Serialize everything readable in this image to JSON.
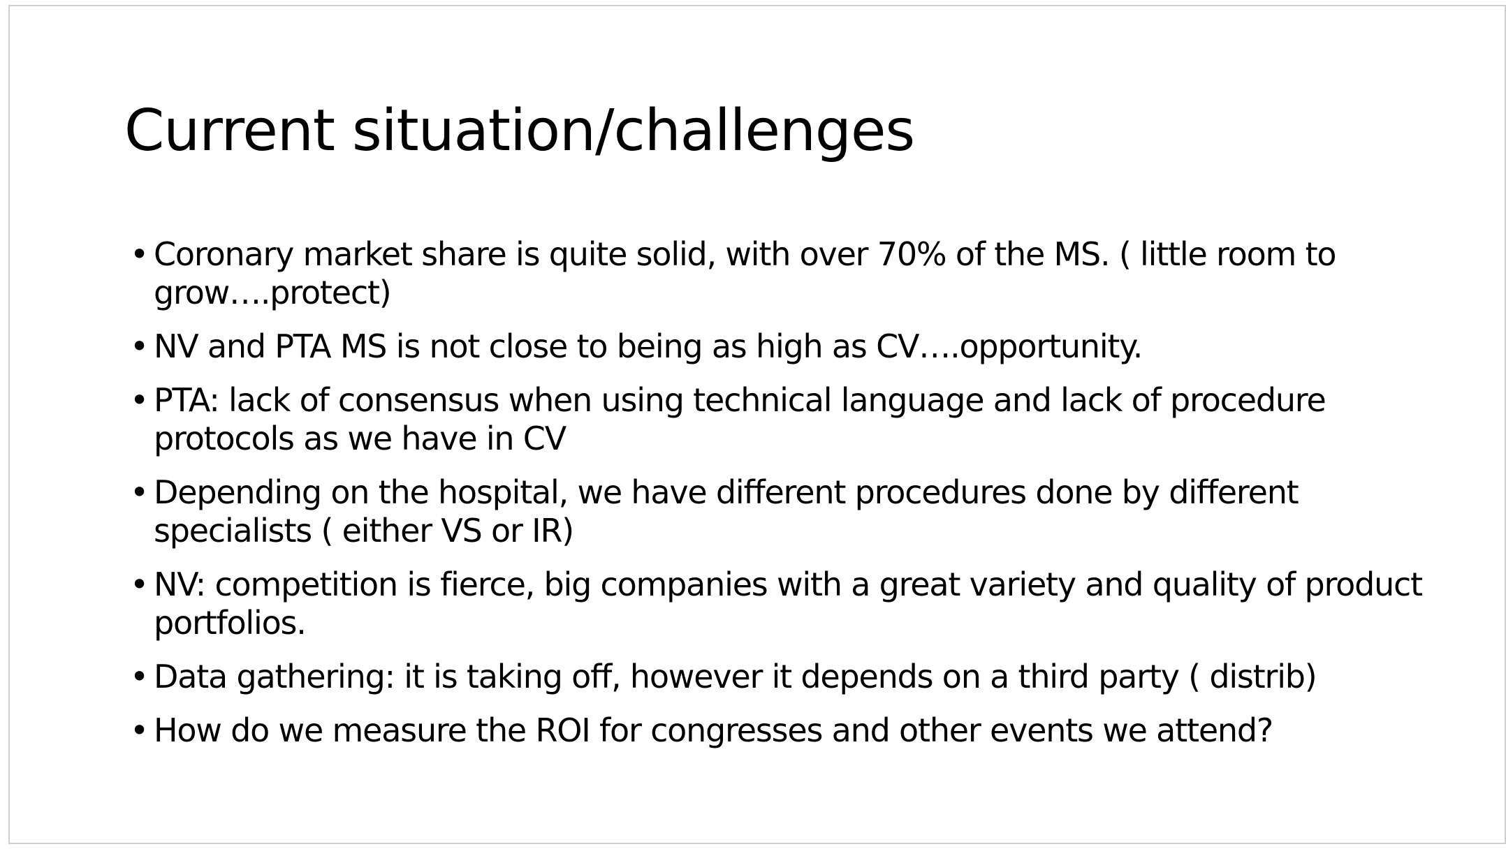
{
  "slide": {
    "title": "Current situation/challenges",
    "bullet_symbol": "•",
    "bullets": [
      "Coronary market share is quite solid, with over 70% of the MS. ( little room to grow….protect)",
      "NV and PTA MS is not close to being as high as CV….opportunity.",
      "PTA: lack of consensus when using technical language and lack of procedure protocols as we have in CV",
      "Depending on the hospital, we have different procedures done by different specialists ( either VS or IR)",
      "NV: competition is fierce, big companies with a great variety and quality of product portfolios.",
      "Data gathering: it is taking off, however it depends on a third party ( distrib)",
      "How do we measure the ROI for congresses and other events we attend?"
    ]
  }
}
